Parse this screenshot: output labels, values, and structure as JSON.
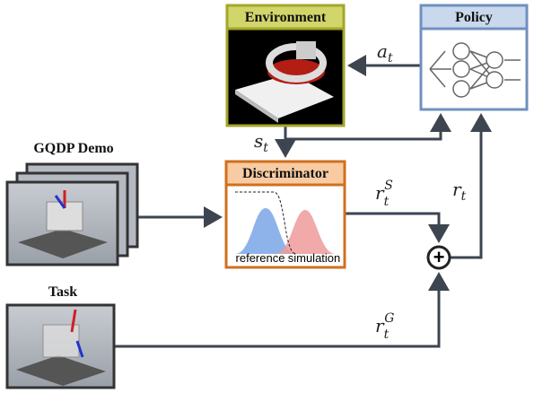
{
  "environment": {
    "title": "Environment"
  },
  "policy": {
    "title": "Policy"
  },
  "demo": {
    "title": "GQDP Demo"
  },
  "discriminator": {
    "title": "Discriminator",
    "labels": [
      "reference",
      "simulation"
    ]
  },
  "task": {
    "title": "Task"
  },
  "signals": {
    "action": {
      "base": "a",
      "sub": "t"
    },
    "state": {
      "base": "s",
      "sub": "t"
    },
    "style_reward": {
      "base": "r",
      "sub": "t",
      "sup": "S"
    },
    "total_reward": {
      "base": "r",
      "sub": "t"
    },
    "task_reward": {
      "base": "r",
      "sub": "t",
      "sup": "G"
    }
  },
  "combine": {
    "symbol": "+"
  }
}
